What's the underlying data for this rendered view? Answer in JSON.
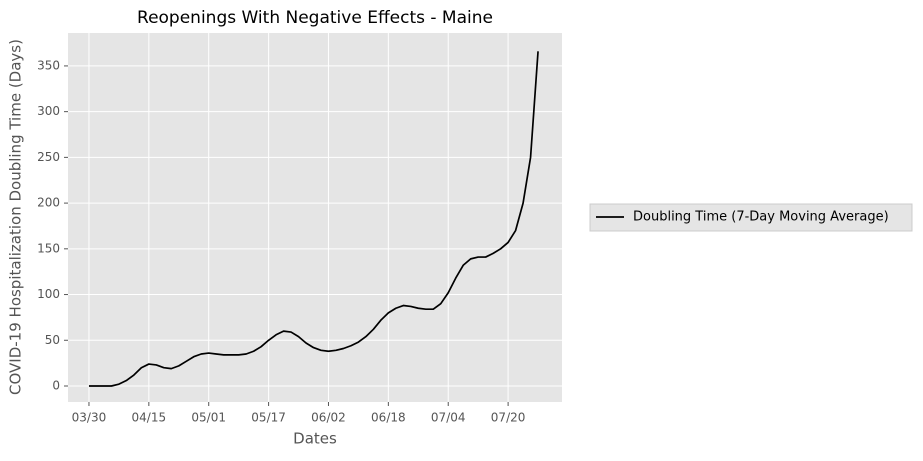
{
  "chart_data": {
    "type": "line",
    "title": "Reopenings With Negative Effects - Maine",
    "x_label": "Dates",
    "y_label": "COVID-19 Hospitalization Doubling Time (Days)",
    "categories": [
      "03/30",
      null,
      null,
      null,
      null,
      null,
      null,
      null,
      "04/15",
      null,
      null,
      null,
      null,
      null,
      null,
      null,
      "05/01",
      null,
      null,
      null,
      null,
      null,
      null,
      null,
      "05/17",
      null,
      null,
      null,
      null,
      null,
      null,
      null,
      "06/02",
      null,
      null,
      null,
      null,
      null,
      null,
      null,
      "06/18",
      null,
      null,
      null,
      null,
      null,
      null,
      null,
      "07/04",
      null,
      null,
      null,
      null,
      null,
      null,
      null,
      "07/20",
      null,
      null,
      null,
      null
    ],
    "series": [
      {
        "name": "Doubling Time (7-Day Moving Average)",
        "color": "#000000",
        "values": [
          0,
          0,
          0,
          0,
          2,
          6,
          12,
          20,
          24,
          23,
          20,
          19,
          22,
          27,
          32,
          35,
          36,
          35,
          34,
          34,
          34,
          35,
          38,
          43,
          50,
          56,
          60,
          59,
          54,
          47,
          42,
          39,
          38,
          39,
          41,
          44,
          48,
          54,
          62,
          72,
          80,
          85,
          88,
          87,
          85,
          84,
          84,
          90,
          102,
          118,
          132,
          139,
          141,
          141,
          145,
          150,
          157,
          170,
          200,
          250,
          366
        ]
      }
    ],
    "xlim": [
      -2.8,
      63.2
    ],
    "ylim": [
      -17.5,
      386
    ],
    "yticks": [
      0,
      50,
      100,
      150,
      200,
      250,
      300,
      350
    ],
    "grid": true,
    "legend": "right"
  }
}
